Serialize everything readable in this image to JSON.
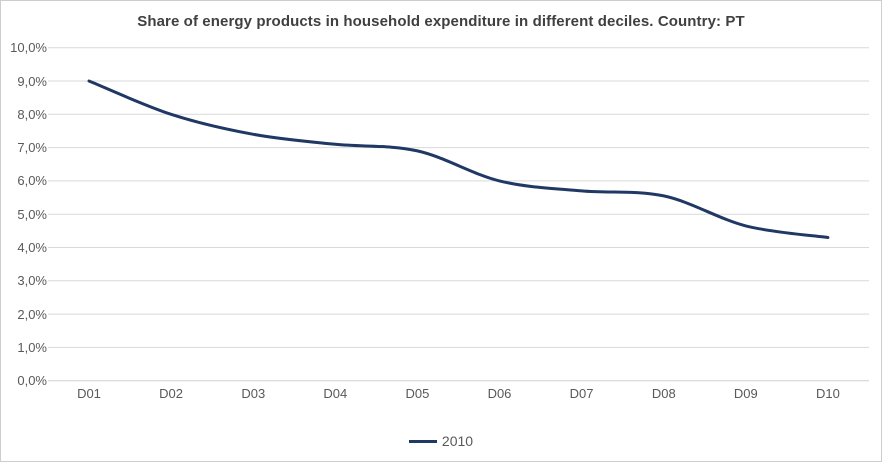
{
  "colors": {
    "series_line": "#1f3864",
    "gridline": "#d9d9d9",
    "axis_line": "#d0d0d0",
    "axis_text": "#595959",
    "title_text": "#404040",
    "frame_border": "#cdcdcd",
    "background": "#ffffff"
  },
  "chart_data": {
    "type": "line",
    "title": "Share of energy products in household expenditure in different deciles. Country: PT",
    "categories": [
      "D01",
      "D02",
      "D03",
      "D04",
      "D05",
      "D06",
      "D07",
      "D08",
      "D09",
      "D10"
    ],
    "series": [
      {
        "name": "2010",
        "values": [
          9.0,
          8.0,
          7.4,
          7.1,
          6.9,
          6.0,
          5.7,
          5.55,
          4.65,
          4.3
        ],
        "color": "#1f3864",
        "smoothed": true,
        "line_width": 3
      }
    ],
    "xlabel": "",
    "ylabel": "",
    "ylim": [
      0,
      10
    ],
    "y_tick_step": 1,
    "y_tick_labels": [
      "0,0%",
      "1,0%",
      "2,0%",
      "3,0%",
      "4,0%",
      "5,0%",
      "6,0%",
      "7,0%",
      "8,0%",
      "9,0%",
      "10,0%"
    ],
    "grid": "horizontal",
    "legend_position": "bottom-center"
  }
}
